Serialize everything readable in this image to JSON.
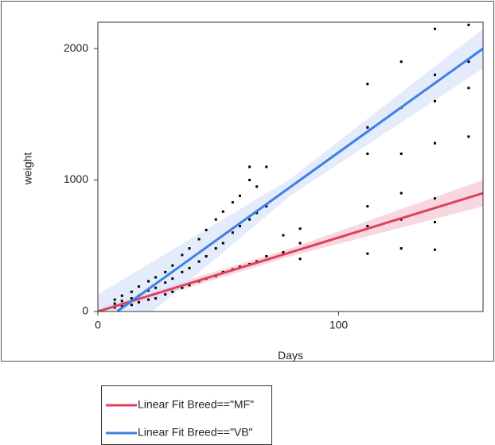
{
  "chart_data": {
    "type": "scatter",
    "x_label": "Days",
    "y_label": "weight",
    "xlim": [
      0,
      160
    ],
    "ylim": [
      0,
      2200
    ],
    "xticks": [
      0,
      100
    ],
    "yticks": [
      0,
      1000,
      2000
    ],
    "points": {
      "color": "#000000",
      "x": [
        7,
        7,
        7,
        10,
        10,
        10,
        14,
        14,
        14,
        17,
        17,
        17,
        21,
        21,
        21,
        24,
        24,
        24,
        28,
        28,
        28,
        31,
        31,
        31,
        35,
        35,
        35,
        38,
        38,
        38,
        42,
        42,
        42,
        45,
        45,
        45,
        49,
        49,
        49,
        52,
        52,
        52,
        56,
        56,
        56,
        59,
        59,
        59,
        63,
        63,
        63,
        63,
        66,
        66,
        66,
        70,
        70,
        70,
        77,
        77,
        84,
        84,
        84,
        112,
        112,
        112,
        112,
        112,
        112,
        126,
        126,
        126,
        126,
        126,
        126,
        140,
        140,
        140,
        140,
        140,
        140,
        140,
        154,
        154,
        154,
        154
      ],
      "values": [
        30,
        60,
        90,
        40,
        80,
        120,
        50,
        100,
        150,
        70,
        120,
        190,
        90,
        160,
        230,
        100,
        180,
        260,
        130,
        220,
        300,
        150,
        250,
        350,
        180,
        300,
        430,
        200,
        330,
        480,
        230,
        380,
        550,
        250,
        420,
        620,
        270,
        480,
        700,
        300,
        520,
        760,
        320,
        600,
        830,
        340,
        650,
        880,
        360,
        700,
        1000,
        1100,
        380,
        750,
        950,
        420,
        800,
        1100,
        450,
        580,
        400,
        520,
        630,
        440,
        650,
        800,
        1200,
        1400,
        1730,
        480,
        700,
        900,
        1200,
        1550,
        1900,
        470,
        680,
        860,
        1280,
        1600,
        1800,
        2150,
        1330,
        1700,
        1900,
        2180
      ]
    },
    "series": [
      {
        "name": "Linear Fit Breed==\"MF\"",
        "color": "#e0405e",
        "band_color": "#f6c9d3",
        "x": [
          0,
          160
        ],
        "values": [
          0,
          900
        ],
        "band_x": [
          0,
          80,
          160
        ],
        "band_lower": [
          -30,
          420,
          800
        ],
        "band_upper": [
          30,
          480,
          1000
        ]
      },
      {
        "name": "Linear Fit Breed==\"VB\"",
        "color": "#3f7fe6",
        "band_color": "#dbe6fb",
        "x": [
          8,
          160
        ],
        "values": [
          0,
          2000
        ],
        "band_x": [
          0,
          80,
          160
        ],
        "band_lower": [
          -350,
          880,
          1850
        ],
        "band_upper": [
          130,
          1010,
          2150
        ]
      }
    ]
  }
}
